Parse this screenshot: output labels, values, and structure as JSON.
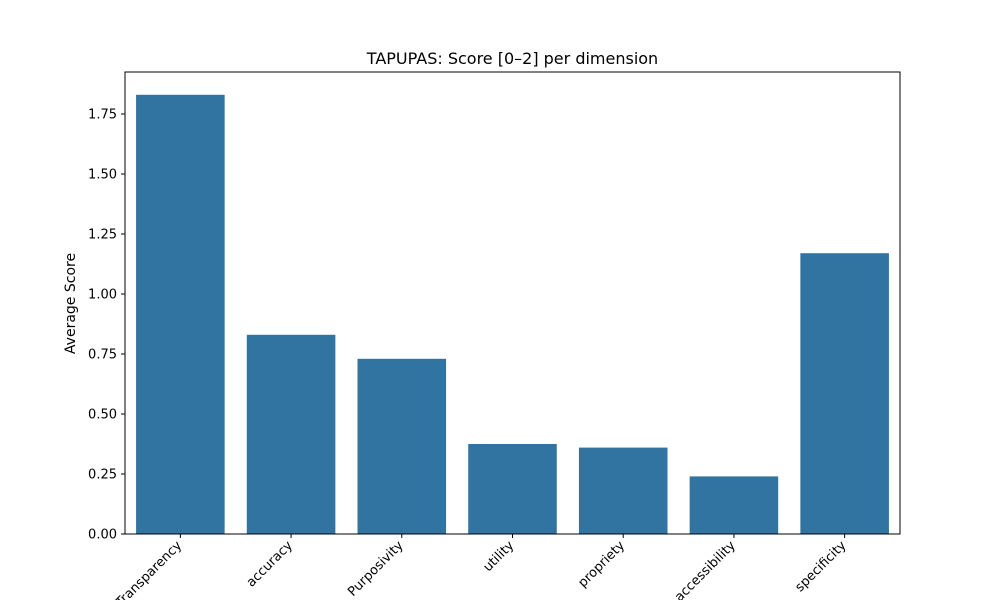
{
  "chart_data": {
    "type": "bar",
    "title": "TAPUPAS: Score [0–2] per dimension",
    "xlabel": "",
    "ylabel": "Average Score",
    "categories": [
      "Transparency",
      "accuracy",
      "Purposivity",
      "utility",
      "propriety",
      "accessibility",
      "specificity"
    ],
    "values": [
      1.83,
      0.83,
      0.73,
      0.375,
      0.36,
      0.24,
      1.17
    ],
    "ylim": [
      0,
      1.925
    ],
    "yticks": [
      0.0,
      0.25,
      0.5,
      0.75,
      1.0,
      1.25,
      1.5,
      1.75
    ],
    "ytick_labels": [
      "0.00",
      "0.25",
      "0.50",
      "0.75",
      "1.00",
      "1.25",
      "1.50",
      "1.75"
    ],
    "bar_color": "#3274a1",
    "grid": false,
    "legend": "none"
  }
}
